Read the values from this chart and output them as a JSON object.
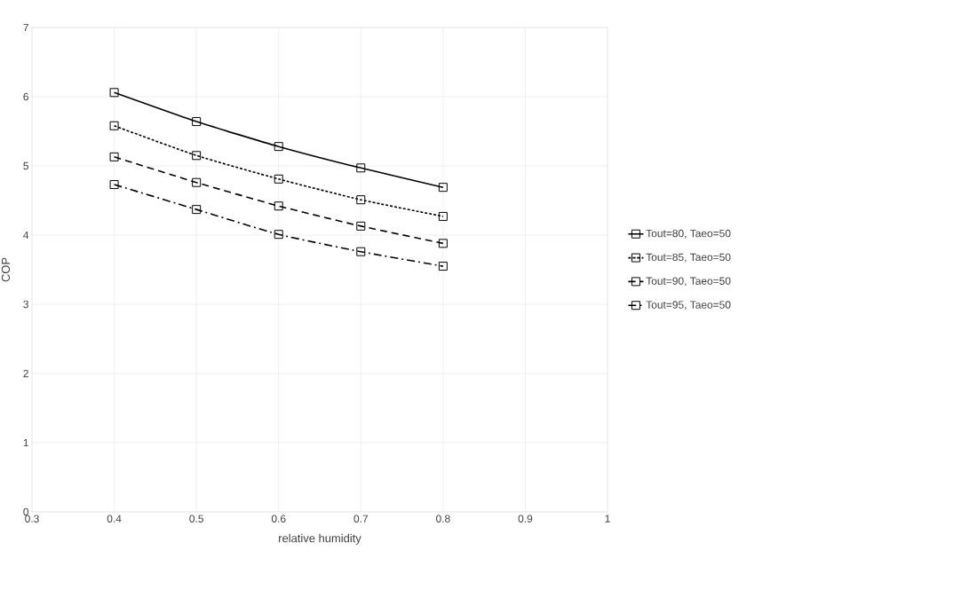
{
  "chart_data": {
    "type": "line",
    "xlabel": "relative humidity",
    "ylabel": "COP",
    "x": [
      0.4,
      0.5,
      0.6,
      0.7,
      0.8
    ],
    "series": [
      {
        "name": "Tout=80, Taeo=50",
        "color": "#000000",
        "line_style": "solid",
        "values": [
          6.06,
          5.64,
          5.28,
          4.97,
          4.69
        ]
      },
      {
        "name": "Tout=85, Taeo=50",
        "color": "#000000",
        "line_style": "dotted",
        "values": [
          5.58,
          5.15,
          4.81,
          4.51,
          4.27
        ]
      },
      {
        "name": "Tout=90, Taeo=50",
        "color": "#000000",
        "line_style": "dashed",
        "values": [
          5.13,
          4.76,
          4.42,
          4.13,
          3.88
        ]
      },
      {
        "name": "Tout=95, Taeo=50",
        "color": "#000000",
        "line_style": "dashdot",
        "values": [
          4.73,
          4.37,
          4.01,
          3.76,
          3.55
        ]
      }
    ],
    "xlim": [
      0.3,
      1
    ],
    "xticks": [
      0.3,
      0.4,
      0.5,
      0.6,
      0.7,
      0.8,
      0.9,
      1
    ],
    "ylim": [
      0,
      7
    ],
    "yticks": [
      0,
      1,
      2,
      3,
      4,
      5,
      6,
      7
    ],
    "grid": true,
    "legend": "right",
    "marker": "square"
  }
}
